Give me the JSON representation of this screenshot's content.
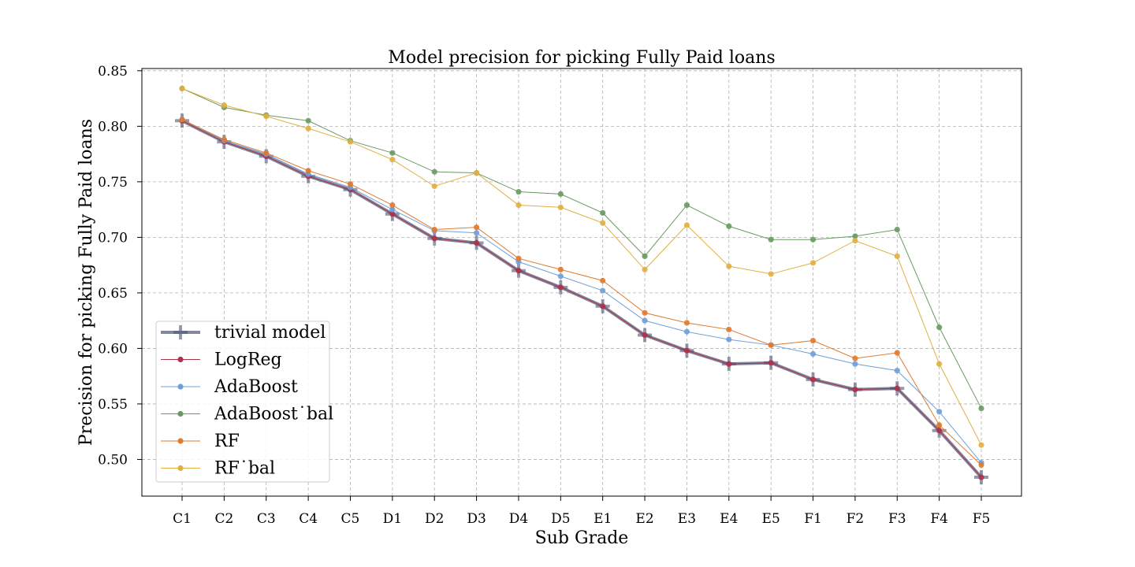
{
  "chart_data": {
    "type": "line",
    "title": "Model precision for picking Fully Paid loans",
    "xlabel": "Sub Grade",
    "ylabel": "Precision for picking Fully Paid loans",
    "categories": [
      "C1",
      "C2",
      "C3",
      "C4",
      "C5",
      "D1",
      "D2",
      "D3",
      "D4",
      "D5",
      "E1",
      "E2",
      "E3",
      "E4",
      "E5",
      "F1",
      "F2",
      "F3",
      "F4",
      "F5"
    ],
    "ylim": [
      0.467,
      0.852
    ],
    "yticks": [
      0.5,
      0.55,
      0.6,
      0.65,
      0.7,
      0.75,
      0.8,
      0.85
    ],
    "ytick_labels": [
      "0.50",
      "0.55",
      "0.60",
      "0.65",
      "0.70",
      "0.75",
      "0.80",
      "0.85"
    ],
    "grid": true,
    "legend_position": "lower-left",
    "series": [
      {
        "name": "trivial model",
        "color": "#4d5775",
        "marker": "plus",
        "values": [
          0.805,
          0.786,
          0.773,
          0.755,
          0.743,
          0.721,
          0.699,
          0.695,
          0.67,
          0.655,
          0.638,
          0.612,
          0.598,
          0.586,
          0.587,
          0.572,
          0.563,
          0.564,
          0.526,
          0.484
        ]
      },
      {
        "name": "LogReg",
        "color": "#b0314b",
        "marker": "circle",
        "values": [
          0.805,
          0.786,
          0.773,
          0.755,
          0.743,
          0.721,
          0.699,
          0.695,
          0.67,
          0.655,
          0.638,
          0.612,
          0.598,
          0.586,
          0.587,
          0.572,
          0.563,
          0.564,
          0.526,
          0.484
        ]
      },
      {
        "name": "AdaBoost",
        "color": "#6f9fd8",
        "marker": "circle",
        "values": [
          0.806,
          0.787,
          0.775,
          0.757,
          0.745,
          0.725,
          0.706,
          0.704,
          0.678,
          0.665,
          0.652,
          0.625,
          0.615,
          0.608,
          0.603,
          0.595,
          0.586,
          0.58,
          0.543,
          0.497
        ]
      },
      {
        "name": "AdaBoost˙bal",
        "color": "#6a9a62",
        "marker": "circle",
        "values": [
          0.834,
          0.817,
          0.81,
          0.805,
          0.787,
          0.776,
          0.759,
          0.758,
          0.741,
          0.739,
          0.722,
          0.683,
          0.729,
          0.71,
          0.698,
          0.698,
          0.701,
          0.707,
          0.619,
          0.546
        ]
      },
      {
        "name": "RF",
        "color": "#e07a2e",
        "marker": "circle",
        "values": [
          0.806,
          0.788,
          0.776,
          0.76,
          0.748,
          0.729,
          0.707,
          0.709,
          0.681,
          0.671,
          0.661,
          0.632,
          0.623,
          0.617,
          0.603,
          0.607,
          0.591,
          0.596,
          0.531,
          0.495
        ]
      },
      {
        "name": "RF˙bal",
        "color": "#e0b040",
        "marker": "circle",
        "values": [
          0.834,
          0.819,
          0.809,
          0.798,
          0.786,
          0.77,
          0.746,
          0.758,
          0.729,
          0.727,
          0.713,
          0.671,
          0.711,
          0.674,
          0.667,
          0.677,
          0.697,
          0.683,
          0.586,
          0.513
        ]
      }
    ]
  }
}
